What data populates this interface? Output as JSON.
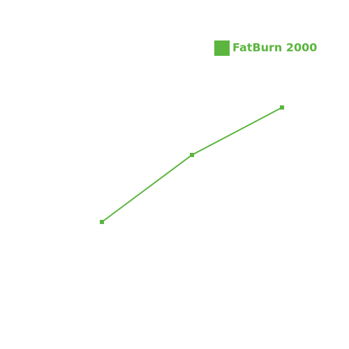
{
  "chart_data": {
    "type": "line",
    "categories": [
      null,
      null,
      null
    ],
    "series": [
      {
        "name": "FatBurn 2000",
        "color": "#5bb53e",
        "values": [
          33,
          57,
          74
        ]
      }
    ],
    "ylim": [
      0,
      100
    ]
  }
}
